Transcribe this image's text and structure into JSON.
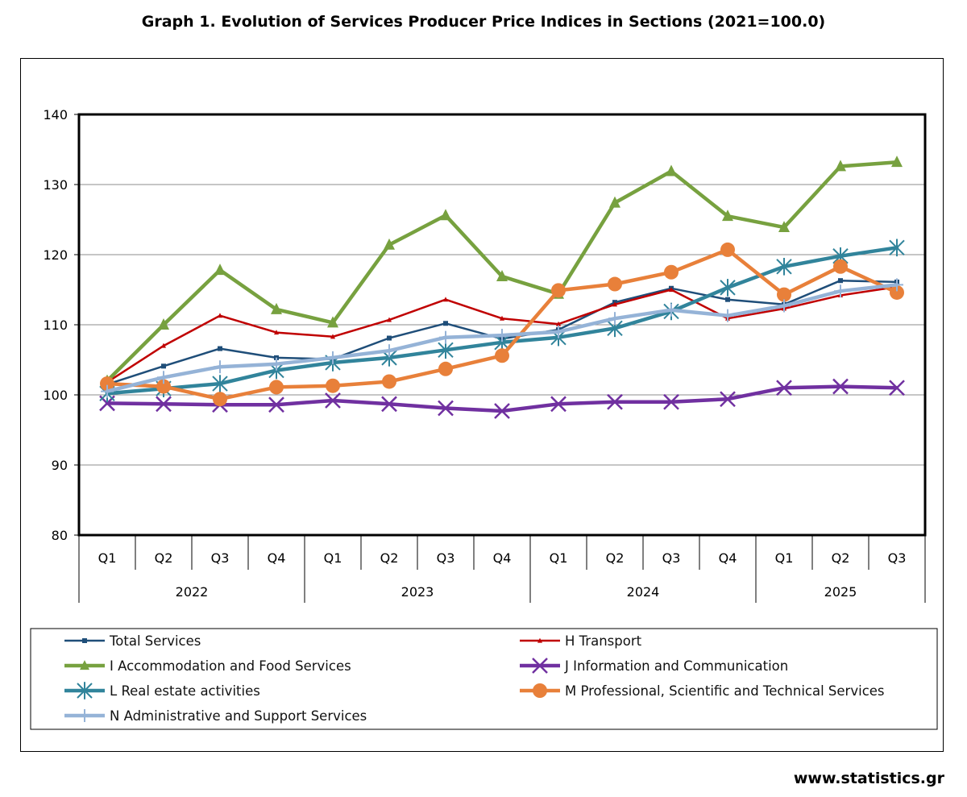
{
  "title": "Graph 1. Evolution of Services Producer Price Indices in Sections (2021=100.0)",
  "footer": "www.statistics.gr",
  "chart_data": {
    "type": "line",
    "title": "Graph 1. Evolution of Services Producer Price Indices in Sections (2021=100.0)",
    "categories": [
      "Q1",
      "Q2",
      "Q3",
      "Q4",
      "Q1",
      "Q2",
      "Q3",
      "Q4",
      "Q1",
      "Q2",
      "Q3",
      "Q4",
      "Q1",
      "Q2",
      "Q3"
    ],
    "year_groups": [
      {
        "label": "2022",
        "count": 4
      },
      {
        "label": "2023",
        "count": 4
      },
      {
        "label": "2024",
        "count": 4
      },
      {
        "label": "2025",
        "count": 3
      }
    ],
    "ylim": [
      80,
      140
    ],
    "yticks": [
      80,
      90,
      100,
      110,
      120,
      130,
      140
    ],
    "grid": true,
    "legend_position": "bottom",
    "series": [
      {
        "name": "Total Services",
        "color": "#1f4e79",
        "marker": "square",
        "width": 2.5,
        "msize": 6,
        "values": [
          101.5,
          104.1,
          106.6,
          105.3,
          105.1,
          108.1,
          110.2,
          108.0,
          109.3,
          113.2,
          115.2,
          113.6,
          112.9,
          116.3,
          116.1
        ]
      },
      {
        "name": "H Transport",
        "color": "#c00000",
        "marker": "triangle",
        "width": 2.5,
        "msize": 6,
        "values": [
          101.8,
          107.0,
          111.3,
          108.9,
          108.3,
          110.7,
          113.6,
          110.9,
          110.1,
          112.9,
          115.0,
          110.9,
          112.3,
          114.2,
          115.4
        ]
      },
      {
        "name": "I Accommodation and Food Services",
        "color": "#77a13f",
        "marker": "triangle",
        "width": 4.5,
        "msize": 14,
        "values": [
          102.0,
          110.0,
          117.8,
          112.2,
          110.3,
          121.4,
          125.6,
          116.9,
          114.4,
          127.4,
          131.9,
          125.5,
          123.9,
          132.6,
          133.2
        ]
      },
      {
        "name": "J Information and Communication",
        "color": "#7030a0",
        "marker": "x",
        "width": 4.5,
        "msize": 9,
        "values": [
          98.8,
          98.7,
          98.6,
          98.6,
          99.2,
          98.7,
          98.1,
          97.7,
          98.7,
          99.0,
          99.0,
          99.4,
          101.0,
          101.2,
          101.0
        ]
      },
      {
        "name": "L Real estate activities",
        "color": "#31849b",
        "marker": "asterisk",
        "width": 4.5,
        "msize": 9,
        "values": [
          100.2,
          100.9,
          101.6,
          103.5,
          104.6,
          105.3,
          106.4,
          107.5,
          108.2,
          109.5,
          111.9,
          115.3,
          118.3,
          119.8,
          121.0
        ]
      },
      {
        "name": "M Professional, Scientific and Technical Services",
        "color": "#e8803a",
        "marker": "circle",
        "width": 4.5,
        "msize": 9,
        "values": [
          101.6,
          101.2,
          99.4,
          101.1,
          101.3,
          101.9,
          103.7,
          105.6,
          114.9,
          115.8,
          117.5,
          120.7,
          114.3,
          118.3,
          114.6
        ]
      },
      {
        "name": "N Administrative and Support Services",
        "color": "#95b3d7",
        "marker": "plus",
        "width": 4.5,
        "msize": 8,
        "values": [
          100.5,
          102.5,
          104.0,
          104.4,
          105.3,
          106.3,
          108.2,
          108.5,
          109.0,
          110.9,
          112.1,
          111.3,
          112.7,
          114.8,
          115.7
        ]
      }
    ]
  }
}
